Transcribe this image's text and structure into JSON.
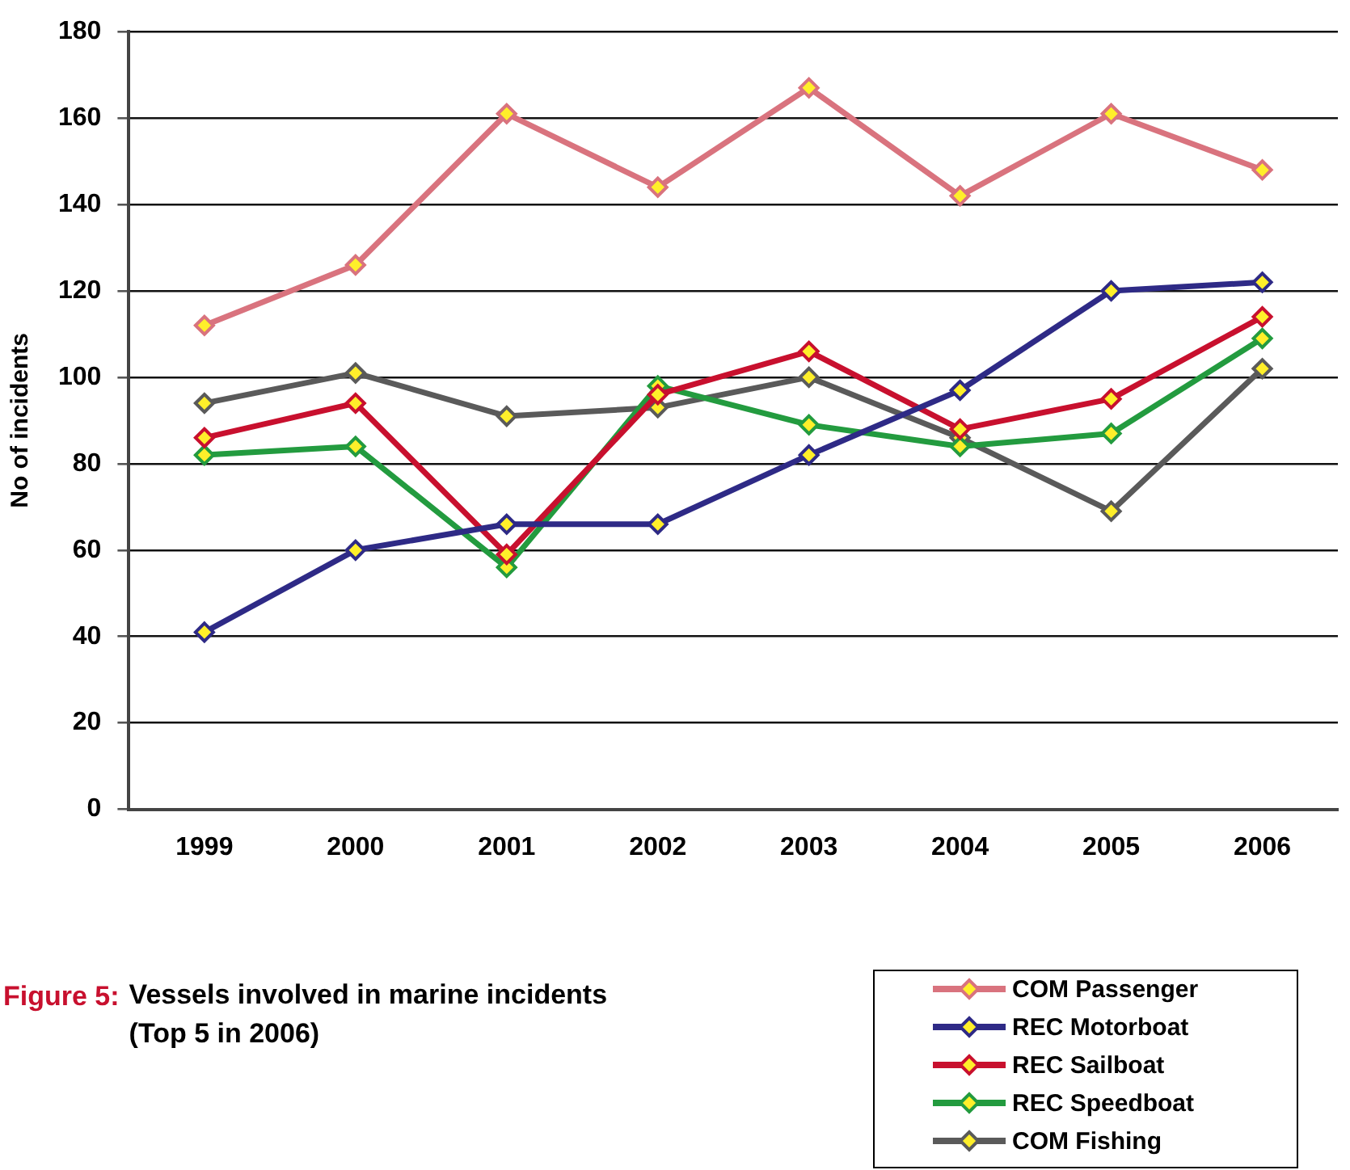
{
  "chart_data": {
    "type": "line",
    "title": "Figure 5:",
    "subtitle": "Vessels involved in marine incidents\n(Top 5 in 2006)",
    "ylabel": "No of incidents",
    "categories": [
      "1999",
      "2000",
      "2001",
      "2002",
      "2003",
      "2004",
      "2005",
      "2006"
    ],
    "series": [
      {
        "name": "COM Passenger",
        "color": "#d9737e",
        "values": [
          112,
          126,
          161,
          144,
          167,
          142,
          161,
          148
        ]
      },
      {
        "name": "REC Motorboat",
        "color": "#2e2a86",
        "values": [
          41,
          60,
          66,
          66,
          82,
          97,
          120,
          122
        ]
      },
      {
        "name": "REC Sailboat",
        "color": "#c8102e",
        "values": [
          86,
          94,
          59,
          96,
          106,
          88,
          95,
          114
        ]
      },
      {
        "name": "REC Speedboat",
        "color": "#239b3f",
        "values": [
          82,
          84,
          56,
          98,
          89,
          84,
          87,
          109
        ]
      },
      {
        "name": "COM Fishing",
        "color": "#5a5a5a",
        "values": [
          94,
          101,
          91,
          93,
          100,
          86,
          69,
          102
        ]
      }
    ],
    "ylim": [
      0,
      180
    ],
    "yticks": [
      0,
      20,
      40,
      60,
      80,
      100,
      120,
      140,
      160,
      180
    ],
    "grid": "y",
    "legend": "bottom right",
    "marker": "diamond",
    "line_style": "solid"
  }
}
